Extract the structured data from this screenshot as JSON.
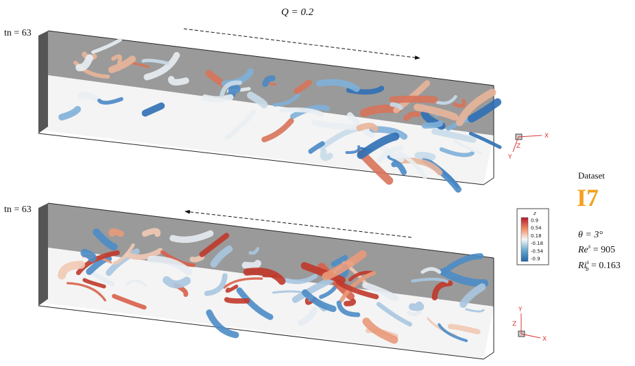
{
  "figure": {
    "panels": [
      {
        "flow_label": "Q = 0.2",
        "time_label": "tn = 63",
        "axes": {
          "x": "X",
          "y": "Y",
          "z": "Z"
        }
      },
      {
        "time_label": "tn = 63",
        "axes": {
          "x": "X",
          "y": "Y",
          "z": "Z"
        }
      }
    ],
    "colorbar": {
      "title": "z",
      "labels": [
        "0.9",
        "0.54",
        "0.18",
        "-0.18",
        "-0.54",
        "-0.9"
      ]
    },
    "side": {
      "heading": "Dataset",
      "dataset": "I7",
      "theta": "θ = 3°",
      "re": {
        "base": "Re",
        "sup": "s",
        "rest": " = 905"
      },
      "ri": {
        "base": "Ri",
        "sub": "b",
        "sup": "s",
        "rest": " = 0.163"
      }
    }
  }
}
